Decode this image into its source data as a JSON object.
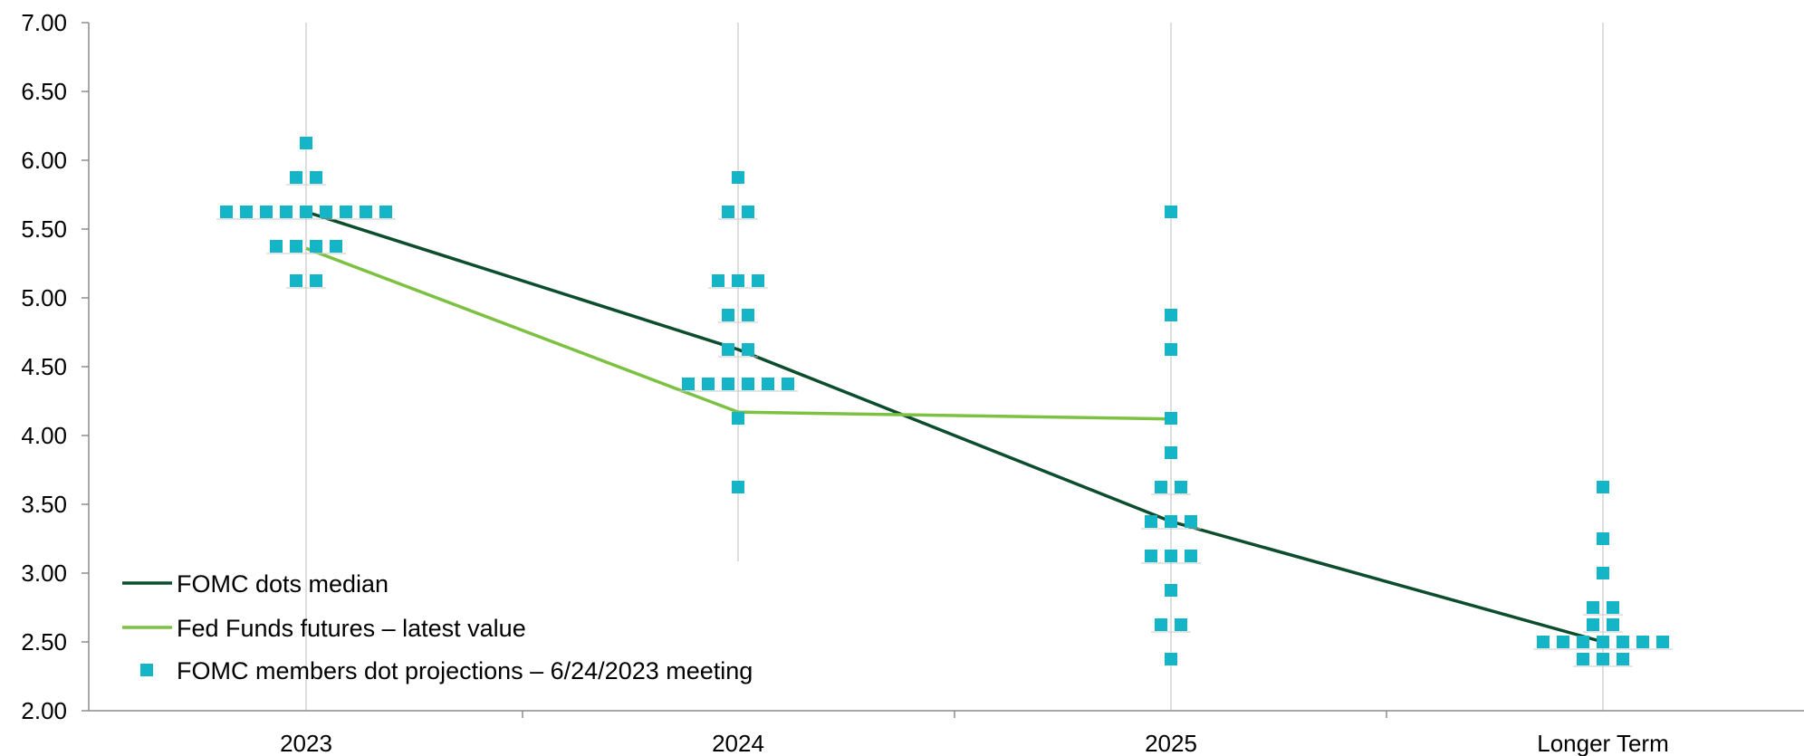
{
  "chart_data": {
    "type": "scatter",
    "title": "",
    "xlabel": "",
    "ylabel": "",
    "categories": [
      "2023",
      "2024",
      "2025",
      "Longer Term"
    ],
    "y_ticks": [
      "2.00",
      "2.50",
      "3.00",
      "3.50",
      "4.00",
      "4.50",
      "5.00",
      "5.50",
      "6.00",
      "6.50",
      "7.00"
    ],
    "ylim": [
      2.0,
      7.0
    ],
    "grid": "vertical lines at categories",
    "legend_position": "bottom-left",
    "series": [
      {
        "name": "FOMC dots median",
        "kind": "line",
        "color": "#0b4d2c",
        "points": [
          {
            "x": "2023",
            "y": 5.625
          },
          {
            "x": "2024",
            "y": 4.625
          },
          {
            "x": "2025",
            "y": 3.375
          },
          {
            "x": "Longer Term",
            "y": 2.5
          }
        ]
      },
      {
        "name": "Fed Funds futures – latest value",
        "kind": "line",
        "color": "#7dc142",
        "points": [
          {
            "x": "2023",
            "y": 5.36
          },
          {
            "x": "2024",
            "y": 4.17
          },
          {
            "x": "2025",
            "y": 4.12
          }
        ]
      },
      {
        "name": "FOMC members dot projections – 6/24/2023 meeting",
        "kind": "dots",
        "color": "#13b5c7",
        "groups": [
          {
            "x": "2023",
            "levels": [
              {
                "y": 6.125,
                "count": 1
              },
              {
                "y": 5.875,
                "count": 2
              },
              {
                "y": 5.625,
                "count": 9
              },
              {
                "y": 5.375,
                "count": 4
              },
              {
                "y": 5.125,
                "count": 2
              }
            ]
          },
          {
            "x": "2024",
            "levels": [
              {
                "y": 5.875,
                "count": 1
              },
              {
                "y": 5.625,
                "count": 2
              },
              {
                "y": 5.125,
                "count": 3
              },
              {
                "y": 4.875,
                "count": 2
              },
              {
                "y": 4.625,
                "count": 2
              },
              {
                "y": 4.375,
                "count": 6
              },
              {
                "y": 4.125,
                "count": 1
              },
              {
                "y": 3.625,
                "count": 1
              }
            ]
          },
          {
            "x": "2025",
            "levels": [
              {
                "y": 5.625,
                "count": 1
              },
              {
                "y": 4.875,
                "count": 1
              },
              {
                "y": 4.625,
                "count": 1
              },
              {
                "y": 4.125,
                "count": 1
              },
              {
                "y": 3.875,
                "count": 1
              },
              {
                "y": 3.625,
                "count": 2
              },
              {
                "y": 3.375,
                "count": 3
              },
              {
                "y": 3.125,
                "count": 3
              },
              {
                "y": 2.875,
                "count": 1
              },
              {
                "y": 2.625,
                "count": 2
              },
              {
                "y": 2.375,
                "count": 1
              }
            ]
          },
          {
            "x": "Longer Term",
            "levels": [
              {
                "y": 3.625,
                "count": 1
              },
              {
                "y": 3.25,
                "count": 1
              },
              {
                "y": 3.0,
                "count": 1
              },
              {
                "y": 2.75,
                "count": 2
              },
              {
                "y": 2.625,
                "count": 2
              },
              {
                "y": 2.5,
                "count": 7
              },
              {
                "y": 2.375,
                "count": 3
              }
            ]
          }
        ]
      }
    ]
  }
}
